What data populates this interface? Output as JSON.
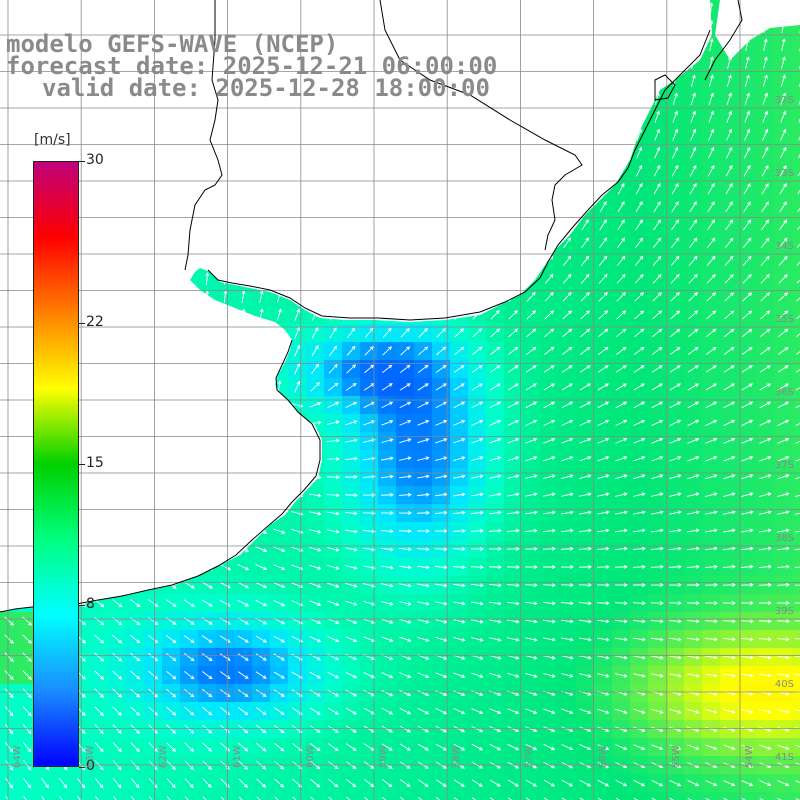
{
  "title": {
    "line1": "modelo GEFS-WAVE (NCEP)",
    "line2": "forecast date: 2025-12-21 06:00:00",
    "line3": "valid date: 2025-12-28 18:00:00"
  },
  "legend": {
    "unit": "[m/s]",
    "ticks": [
      "30",
      "22",
      "15",
      "8",
      "0"
    ],
    "tick_values": [
      30,
      22,
      15,
      8,
      0
    ],
    "colors": [
      "#0000ff",
      "#1a8cff",
      "#00ffff",
      "#00ff80",
      "#00d000",
      "#ffff00",
      "#ff8000",
      "#ff0000",
      "#c0007a"
    ]
  },
  "lat_labels": [
    "32S",
    "33S",
    "34S",
    "35S",
    "36S",
    "37S",
    "38S",
    "39S",
    "40S",
    "41S"
  ],
  "lon_labels": [
    "64W",
    "63W",
    "62W",
    "61W",
    "60W",
    "59W",
    "58W",
    "57W",
    "56W",
    "55W",
    "54W"
  ],
  "map_colors": {
    "land": "#ffffff",
    "coast": "#000000",
    "grid": "#888888",
    "arrow": "#ffffff"
  }
}
